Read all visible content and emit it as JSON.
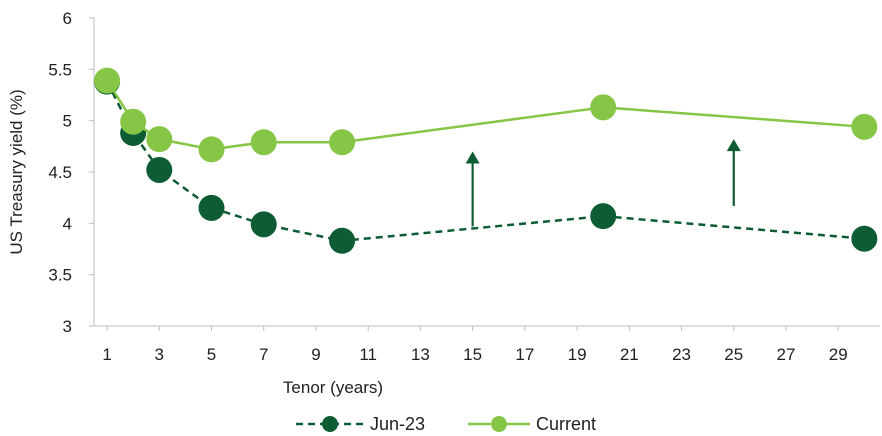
{
  "chart_data": {
    "type": "line",
    "xlabel": "Tenor (years)",
    "ylabel": "US Treasury yield (%)",
    "xlim": [
      0.5,
      30.6
    ],
    "ylim": [
      3,
      6
    ],
    "x_ticks": [
      1,
      3,
      5,
      7,
      9,
      11,
      13,
      15,
      17,
      19,
      21,
      23,
      25,
      27,
      29
    ],
    "y_ticks": [
      3,
      3.5,
      4,
      4.5,
      5,
      5.5,
      6
    ],
    "y_tick_labels": [
      "3",
      "3.5",
      "4",
      "4.5",
      "5",
      "5.5",
      "6"
    ],
    "grid": false,
    "legend_position": "bottom",
    "series": [
      {
        "name": "Jun-23",
        "style": "dashed",
        "color": "#0d5c33",
        "x": [
          1,
          2,
          3,
          5,
          7,
          10,
          20,
          30
        ],
        "values": [
          5.38,
          4.88,
          4.52,
          4.15,
          3.99,
          3.83,
          4.07,
          3.85
        ]
      },
      {
        "name": "Current",
        "style": "solid",
        "color": "#86c646",
        "x": [
          1,
          2,
          3,
          5,
          7,
          10,
          20,
          30
        ],
        "values": [
          5.39,
          4.99,
          4.82,
          4.72,
          4.79,
          4.79,
          5.13,
          4.94
        ]
      }
    ],
    "annotations": [
      {
        "type": "arrow-up",
        "x": 15,
        "from": 3.97,
        "to": 4.7,
        "color": "#0d5c33"
      },
      {
        "type": "arrow-up",
        "x": 25,
        "from": 4.17,
        "to": 4.82,
        "color": "#0d5c33"
      }
    ]
  }
}
